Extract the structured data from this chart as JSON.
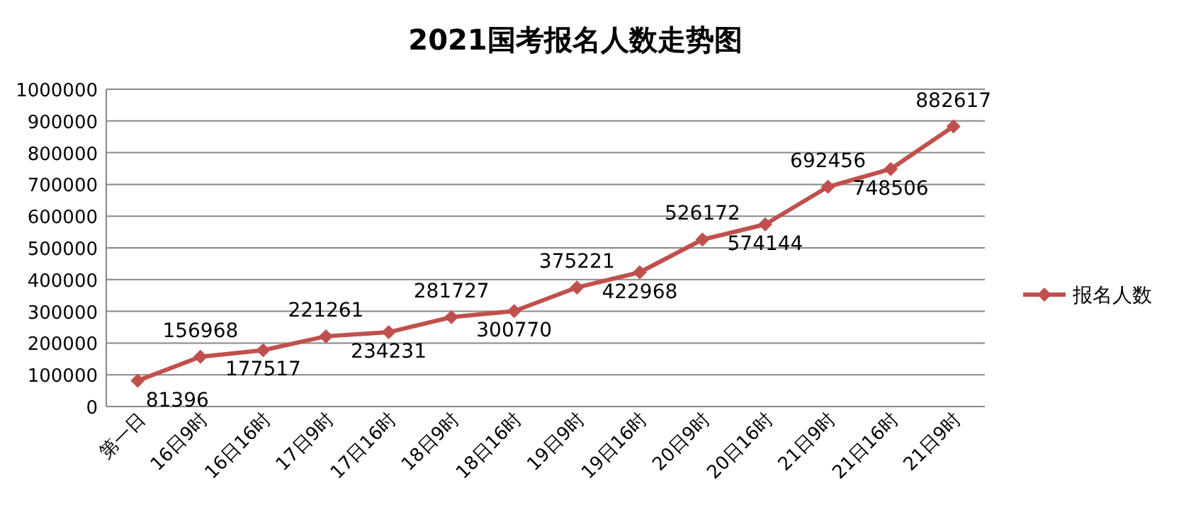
{
  "chart_data": {
    "type": "line",
    "title": "2021国考报名人数走势图",
    "categories": [
      "第一日",
      "16日9时",
      "16日16时",
      "17日9时",
      "17日16时",
      "18日9时",
      "18日16时",
      "19日9时",
      "19日16时",
      "20日9时",
      "20日16时",
      "21日9时",
      "21日16时",
      "21日9时"
    ],
    "series": [
      {
        "name": "报名人数",
        "color": "#c0504d",
        "values": [
          81396,
          156968,
          177517,
          221261,
          234231,
          281727,
          300770,
          375221,
          422968,
          526172,
          574144,
          692456,
          748506,
          882617
        ]
      }
    ],
    "ylim": [
      0,
      1000000
    ],
    "yticks": [
      0,
      100000,
      200000,
      300000,
      400000,
      500000,
      600000,
      700000,
      800000,
      900000,
      1000000
    ],
    "grid": "y",
    "legend": "right",
    "marker": "diamond",
    "line_style": "solid",
    "data_labels": true
  }
}
